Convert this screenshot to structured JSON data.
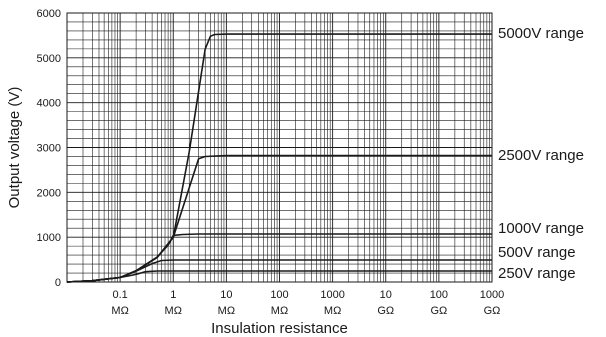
{
  "chart_data": {
    "type": "line",
    "title": "",
    "xlabel": "Insulation resistance",
    "ylabel": "Output voltage (V)",
    "x_scale": "log",
    "x_unit": "Ω",
    "xlim_ohm": [
      10000,
      1000000000000
    ],
    "ylim": [
      0,
      6000
    ],
    "grid": true,
    "legend": "labels at right end of each curve",
    "x_ticks": [
      {
        "value": 100000,
        "line1": "0.1",
        "line2": "MΩ"
      },
      {
        "value": 1000000,
        "line1": "1",
        "line2": "MΩ"
      },
      {
        "value": 10000000,
        "line1": "10",
        "line2": "MΩ"
      },
      {
        "value": 100000000,
        "line1": "100",
        "line2": "MΩ"
      },
      {
        "value": 1000000000,
        "line1": "1000",
        "line2": "MΩ"
      },
      {
        "value": 10000000000,
        "line1": "10",
        "line2": "GΩ"
      },
      {
        "value": 100000000000,
        "line1": "100",
        "line2": "GΩ"
      },
      {
        "value": 1000000000000,
        "line1": "1000",
        "line2": "GΩ"
      }
    ],
    "y_ticks": [
      0,
      1000,
      2000,
      3000,
      4000,
      5000,
      6000
    ],
    "series": [
      {
        "name": "5000V range",
        "x": [
          10000,
          30000,
          100000,
          200000,
          500000,
          1000000,
          2000000,
          4000000,
          5000000,
          6000000,
          10000000,
          1000000000000
        ],
        "y": [
          0,
          30,
          100,
          250,
          550,
          1000,
          2900,
          5200,
          5480,
          5520,
          5530,
          5530
        ]
      },
      {
        "name": "2500V range",
        "x": [
          10000,
          30000,
          100000,
          200000,
          500000,
          1000000,
          2000000,
          3000000,
          4000000,
          10000000,
          1000000000000
        ],
        "y": [
          0,
          30,
          100,
          250,
          550,
          1000,
          2100,
          2750,
          2800,
          2820,
          2820
        ]
      },
      {
        "name": "1000V range",
        "x": [
          10000,
          30000,
          100000,
          200000,
          500000,
          800000,
          1000000,
          1500000,
          3000000,
          1000000000000
        ],
        "y": [
          0,
          30,
          100,
          250,
          560,
          820,
          1040,
          1060,
          1070,
          1070
        ]
      },
      {
        "name": "500V range",
        "x": [
          10000,
          30000,
          100000,
          200000,
          400000,
          600000,
          1000000,
          1000000000000
        ],
        "y": [
          0,
          30,
          100,
          240,
          410,
          480,
          490,
          490
        ]
      },
      {
        "name": "250V range",
        "x": [
          10000,
          30000,
          100000,
          200000,
          300000,
          500000,
          1000000000000
        ],
        "y": [
          0,
          30,
          100,
          170,
          230,
          245,
          245
        ]
      }
    ]
  }
}
